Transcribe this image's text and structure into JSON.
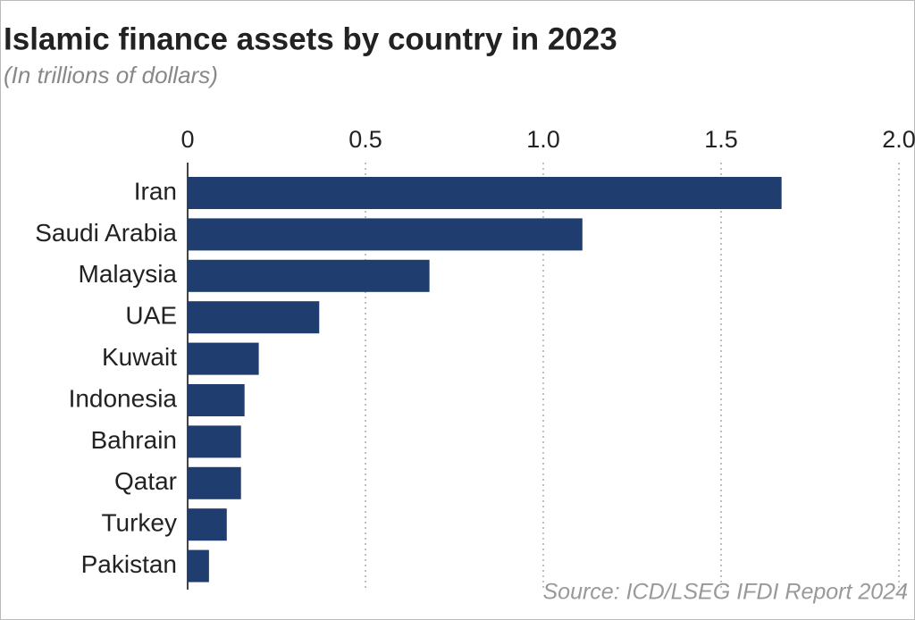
{
  "chart_data": {
    "type": "bar",
    "orientation": "horizontal",
    "title": "Islamic finance assets by country in 2023",
    "subtitle": "(In trillions of dollars)",
    "source": "Source: ICD/LSEG IFDI Report 2024",
    "categories": [
      "Iran",
      "Saudi Arabia",
      "Malaysia",
      "UAE",
      "Kuwait",
      "Indonesia",
      "Bahrain",
      "Qatar",
      "Turkey",
      "Pakistan"
    ],
    "values": [
      1.67,
      1.11,
      0.68,
      0.37,
      0.2,
      0.16,
      0.15,
      0.15,
      0.11,
      0.06
    ],
    "color": "#1f3d6e",
    "xlim": [
      0,
      2.0
    ],
    "xticks": [
      0,
      0.5,
      {
        "value": 1.0,
        "label": "1.0"
      },
      1.5,
      {
        "value": 2.0,
        "label": "2.0"
      }
    ],
    "grid": true
  }
}
